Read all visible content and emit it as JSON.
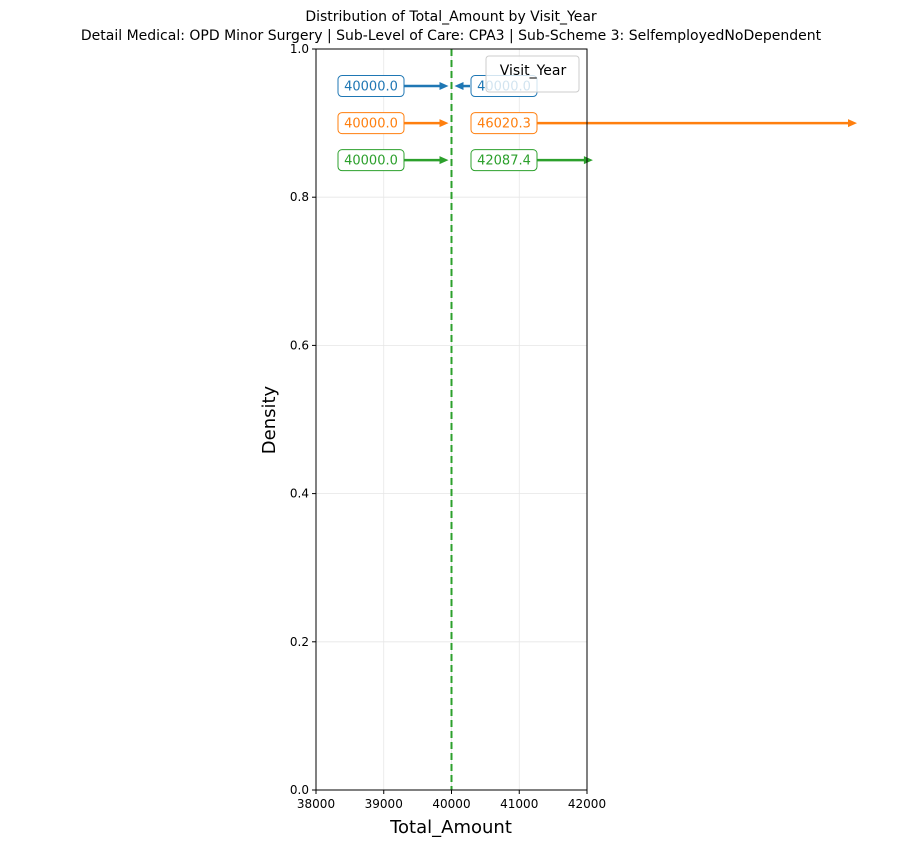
{
  "chart_data": {
    "type": "line",
    "title": "Distribution of Total_Amount by Visit_Year",
    "subtitle": "Detail Medical: OPD Minor Surgery | Sub-Level of Care: CPA3 | Sub-Scheme 3: SelfemployedNoDependent",
    "xlabel": "Total_Amount",
    "ylabel": "Density",
    "xlim": [
      38000,
      42000
    ],
    "ylim": [
      0,
      1.0
    ],
    "xticks": [
      38000,
      39000,
      40000,
      41000,
      42000
    ],
    "xtick_labels": [
      "38000",
      "39000",
      "40000",
      "41000",
      "42000"
    ],
    "yticks": [
      0.0,
      0.2,
      0.4,
      0.6,
      0.8,
      1.0
    ],
    "ytick_labels": [
      "0.0",
      "0.2",
      "0.4",
      "0.6",
      "0.8",
      "1.0"
    ],
    "grid": true,
    "legend": {
      "title": "Visit_Year",
      "placement": "top-right"
    },
    "series": [
      {
        "color": "#1f77b4",
        "vline_x": 40000,
        "annotation_y": 0.95,
        "left_label": "40000.0",
        "left_value": 40000.0,
        "right_label": "40000.0",
        "right_value": 40000.0
      },
      {
        "color": "#ff7f0e",
        "vline_x": 40000,
        "annotation_y": 0.9,
        "left_label": "40000.0",
        "left_value": 40000.0,
        "right_label": "46020.3",
        "right_value": 46020.3
      },
      {
        "color": "#2ca02c",
        "vline_x": 40000,
        "annotation_y": 0.85,
        "left_label": "40000.0",
        "left_value": 40000.0,
        "right_label": "42087.4",
        "right_value": 42087.4
      }
    ]
  }
}
